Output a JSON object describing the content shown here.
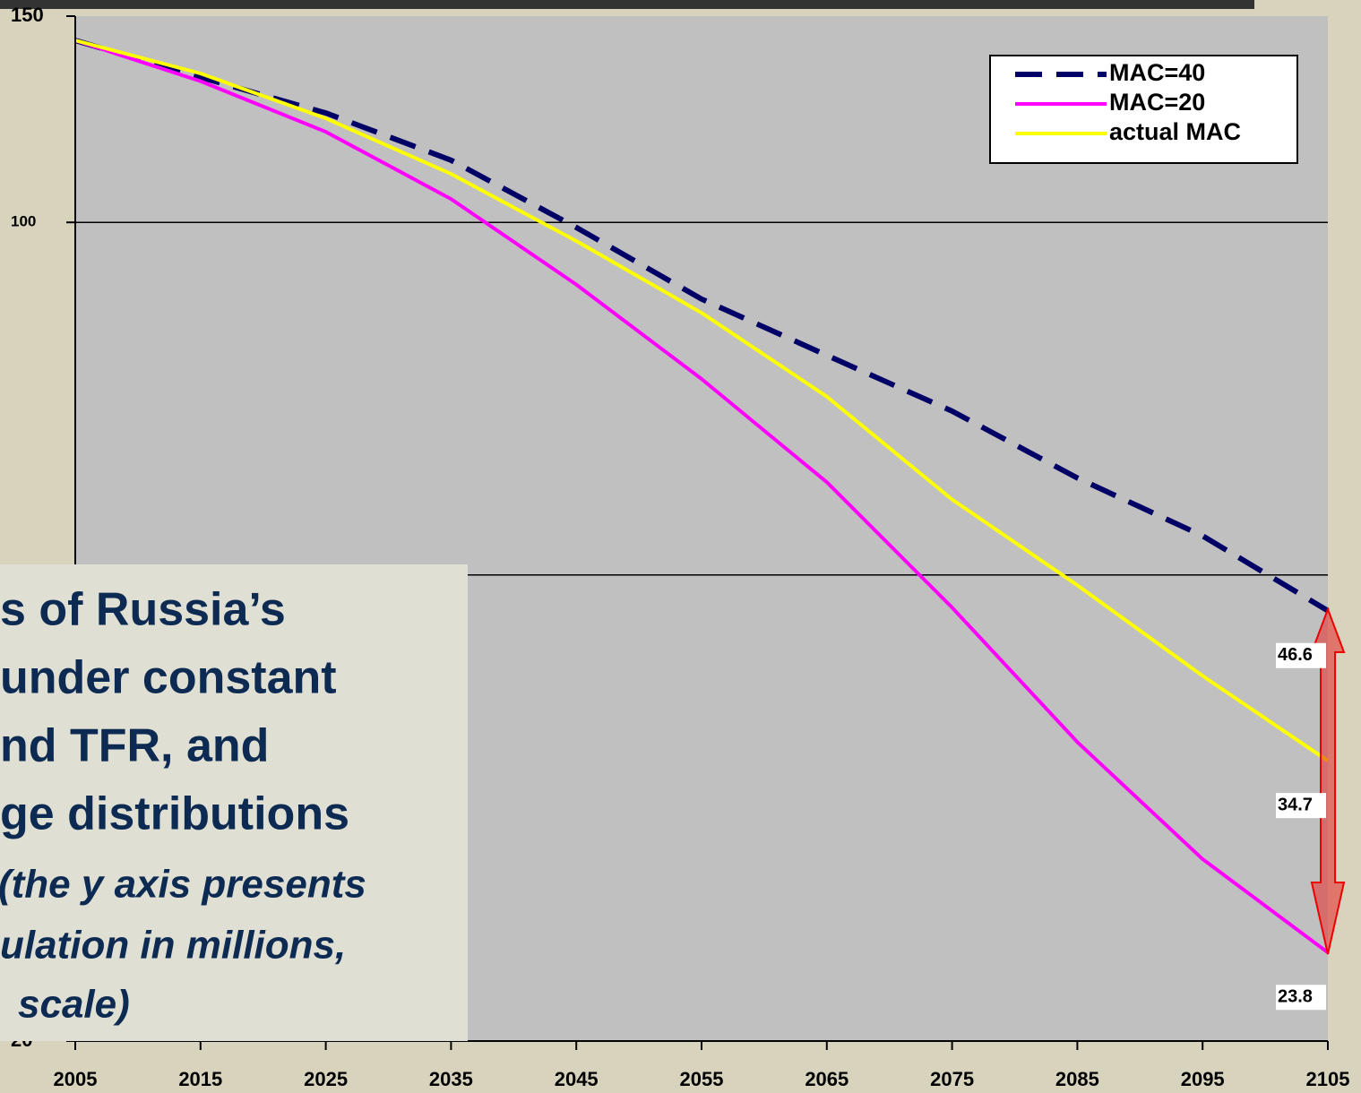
{
  "chart_data": {
    "type": "line",
    "x": [
      2005,
      2015,
      2025,
      2035,
      2045,
      2055,
      2065,
      2075,
      2085,
      2095,
      2105
    ],
    "series": [
      {
        "name": "MAC=40",
        "color": "#000066",
        "dash": true,
        "values": [
          143,
          133,
          124,
          113,
          99,
          86,
          77,
          69,
          60.5,
          54,
          46.6
        ]
      },
      {
        "name": "MAC=20",
        "color": "#ff00ff",
        "dash": false,
        "values": [
          143,
          132,
          119.5,
          104.7,
          88.5,
          73.5,
          60,
          46.9,
          36,
          28.6,
          23.8
        ]
      },
      {
        "name": "actual MAC",
        "color": "#ffff00",
        "dash": false,
        "values": [
          143,
          134,
          122.7,
          110,
          96.4,
          83.7,
          71,
          58,
          49,
          41,
          34.7
        ]
      }
    ],
    "xlim": [
      2005,
      2105
    ],
    "xticks": [
      2005,
      2015,
      2025,
      2035,
      2045,
      2055,
      2065,
      2075,
      2085,
      2095,
      2105
    ],
    "ylim": [
      20,
      150
    ],
    "yticks": [
      20,
      50,
      100,
      150
    ],
    "log_y": true,
    "grid": true,
    "legend": "upper right",
    "annotation": {
      "lines": [
        "s of Russia’s",
        "under constant",
        "nd TFR, and",
        "ge distributions",
        "(the y axis presents",
        "ulation in millions,",
        "scale)"
      ]
    }
  }
}
